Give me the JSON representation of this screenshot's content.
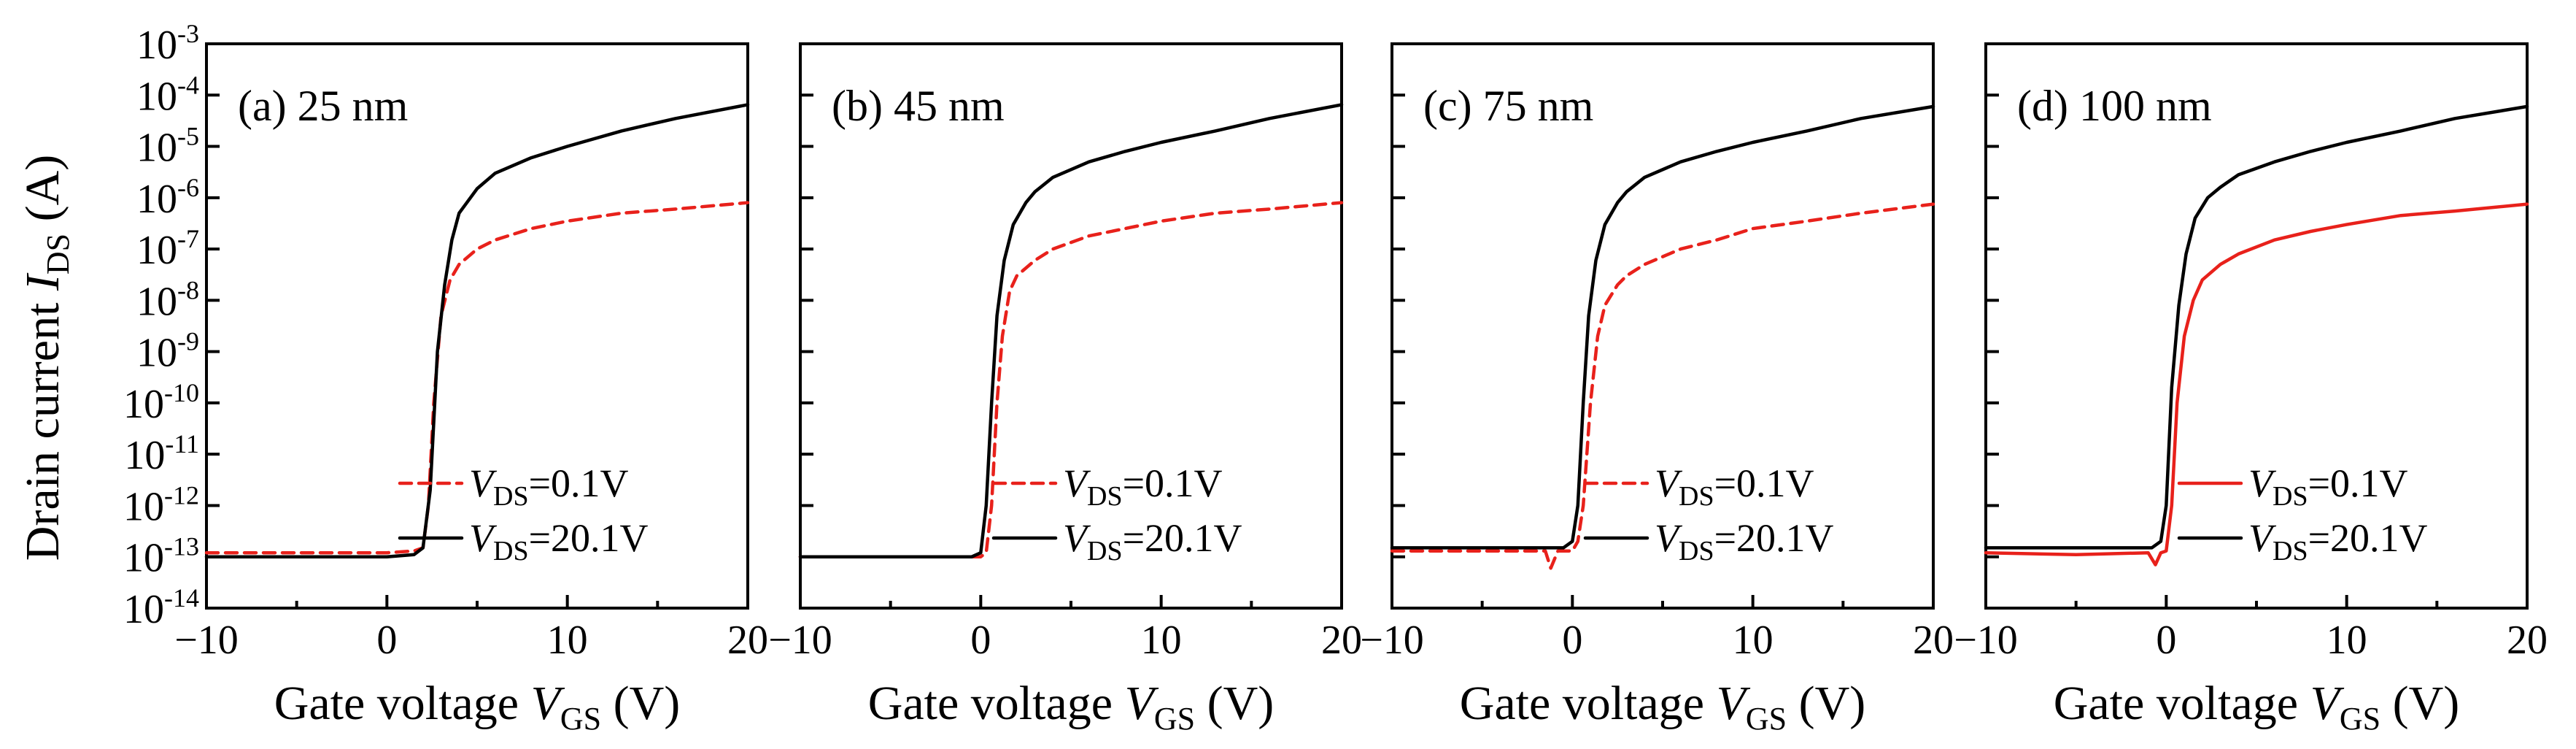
{
  "colors": {
    "vds_low": "#e8211b",
    "vds_high": "#000000"
  },
  "chart_data": [
    {
      "type": "line",
      "panel_label": "(a) 25 nm",
      "xlabel": "Gate voltage V_GS (V)",
      "ylabel": "Drain current I_DS (A)",
      "xlim": [
        -10,
        20
      ],
      "ylim": [
        1e-14,
        0.001
      ],
      "yscale": "log",
      "xticks": [
        "−10",
        "0",
        "10",
        "20"
      ],
      "yticks": [
        "10-3",
        "10-4",
        "10-5",
        "10-6",
        "10-7",
        "10-8",
        "10-9",
        "10-10",
        "10-11",
        "10-12",
        "10-13",
        "10-14"
      ],
      "grid": false,
      "legend_position": "lower-right",
      "series": [
        {
          "name": "V_DS=0.1V",
          "color": "#e8211b",
          "style": "dashed",
          "x": [
            -10,
            -5,
            0,
            1.5,
            2.0,
            2.3,
            2.6,
            3.0,
            3.5,
            4,
            5,
            6,
            8,
            10,
            13,
            16,
            20
          ],
          "y": [
            1.2e-13,
            1.2e-13,
            1.2e-13,
            1.3e-13,
            1.5e-13,
            1e-12,
            1e-10,
            5e-09,
            2.5e-08,
            5e-08,
            1e-07,
            1.5e-07,
            2.5e-07,
            3.5e-07,
            5e-07,
            6e-07,
            8e-07
          ]
        },
        {
          "name": "V_DS=20.1V",
          "color": "#000000",
          "style": "solid",
          "x": [
            -10,
            -5,
            0,
            1.5,
            2.0,
            2.4,
            2.8,
            3.2,
            3.6,
            4,
            5,
            6,
            8,
            10,
            13,
            16,
            20
          ],
          "y": [
            1e-13,
            1e-13,
            1e-13,
            1.1e-13,
            1.5e-13,
            2e-12,
            1e-09,
            2e-08,
            1.5e-07,
            5e-07,
            1.5e-06,
            3e-06,
            6e-06,
            1e-05,
            2e-05,
            3.5e-05,
            6.5e-05
          ]
        }
      ]
    },
    {
      "type": "line",
      "panel_label": "(b) 45 nm",
      "xlabel": "Gate voltage V_GS (V)",
      "xlim": [
        -10,
        20
      ],
      "ylim": [
        1e-14,
        0.001
      ],
      "yscale": "log",
      "xticks": [
        "−10",
        "0",
        "10",
        "20"
      ],
      "grid": false,
      "legend_position": "lower-right",
      "series": [
        {
          "name": "V_DS=0.1V",
          "color": "#e8211b",
          "style": "dashed",
          "x": [
            -10,
            -5,
            0,
            0.3,
            0.6,
            0.9,
            1.2,
            1.6,
            2,
            3,
            4,
            6,
            8,
            10,
            13,
            16,
            20
          ],
          "y": [
            1e-13,
            1e-13,
            1e-13,
            1.2e-13,
            1e-12,
            1e-10,
            2e-09,
            1.5e-08,
            3e-08,
            6e-08,
            1e-07,
            1.8e-07,
            2.5e-07,
            3.5e-07,
            5e-07,
            6e-07,
            8e-07
          ]
        },
        {
          "name": "V_DS=20.1V",
          "color": "#000000",
          "style": "solid",
          "x": [
            -10,
            -5,
            -0.5,
            0,
            0.3,
            0.6,
            0.9,
            1.3,
            1.8,
            2.5,
            3,
            4,
            6,
            8,
            10,
            13,
            16,
            20
          ],
          "y": [
            1e-13,
            1e-13,
            1e-13,
            1.2e-13,
            1e-12,
            1e-10,
            5e-09,
            6e-08,
            3e-07,
            8e-07,
            1.3e-06,
            2.5e-06,
            5e-06,
            8e-06,
            1.2e-05,
            2e-05,
            3.5e-05,
            6.5e-05
          ]
        }
      ]
    },
    {
      "type": "line",
      "panel_label": "(c) 75 nm",
      "xlabel": "Gate voltage V_GS (V)",
      "xlim": [
        -10,
        20
      ],
      "ylim": [
        1e-14,
        0.001
      ],
      "yscale": "log",
      "xticks": [
        "−10",
        "0",
        "10",
        "20"
      ],
      "grid": false,
      "legend_position": "lower-right",
      "series": [
        {
          "name": "V_DS=0.1V",
          "color": "#e8211b",
          "style": "dashed",
          "x": [
            -10,
            -5,
            -1.5,
            -1.2,
            -0.8,
            0,
            0.3,
            0.6,
            1.0,
            1.4,
            1.8,
            2.5,
            3,
            4,
            6,
            8,
            10,
            13,
            16,
            20
          ],
          "y": [
            1.3e-13,
            1.3e-13,
            1.3e-13,
            6e-14,
            1.3e-13,
            1.3e-13,
            2e-13,
            1e-12,
            1e-10,
            2e-09,
            8e-09,
            2e-08,
            3e-08,
            5e-08,
            1e-07,
            1.5e-07,
            2.5e-07,
            3.5e-07,
            5e-07,
            7.5e-07
          ]
        },
        {
          "name": "V_DS=20.1V",
          "color": "#000000",
          "style": "solid",
          "x": [
            -10,
            -5,
            -0.5,
            0,
            0.3,
            0.6,
            0.9,
            1.3,
            1.8,
            2.5,
            3,
            4,
            6,
            8,
            10,
            13,
            16,
            20
          ],
          "y": [
            1.5e-13,
            1.5e-13,
            1.5e-13,
            2e-13,
            1e-12,
            1e-10,
            5e-09,
            6e-08,
            3e-07,
            8e-07,
            1.3e-06,
            2.5e-06,
            5e-06,
            8e-06,
            1.2e-05,
            2e-05,
            3.5e-05,
            6e-05
          ]
        }
      ]
    },
    {
      "type": "line",
      "panel_label": "(d) 100 nm",
      "xlabel": "Gate voltage V_GS (V)",
      "xlim": [
        -10,
        20
      ],
      "ylim": [
        1e-14,
        0.001
      ],
      "yscale": "log",
      "xticks": [
        "−10",
        "0",
        "10",
        "20"
      ],
      "grid": false,
      "legend_position": "lower-right",
      "series": [
        {
          "name": "V_DS=0.1V",
          "color": "#e8211b",
          "style": "solid",
          "x": [
            -10,
            -5,
            -1,
            -0.6,
            -0.3,
            0,
            0.3,
            0.6,
            1.0,
            1.5,
            2,
            3,
            4,
            6,
            8,
            10,
            13,
            16,
            20
          ],
          "y": [
            1.2e-13,
            1.1e-13,
            1.2e-13,
            7e-14,
            1.2e-13,
            1.3e-13,
            1e-12,
            1e-10,
            2e-09,
            1e-08,
            2.5e-08,
            5e-08,
            8e-08,
            1.5e-07,
            2.2e-07,
            3e-07,
            4.5e-07,
            5.5e-07,
            7.5e-07
          ]
        },
        {
          "name": "V_DS=20.1V",
          "color": "#000000",
          "style": "solid",
          "x": [
            -10,
            -5,
            -0.8,
            -0.3,
            0,
            0.3,
            0.7,
            1.1,
            1.6,
            2.3,
            3,
            4,
            6,
            8,
            10,
            13,
            16,
            20
          ],
          "y": [
            1.5e-13,
            1.5e-13,
            1.5e-13,
            2e-13,
            1e-12,
            2e-10,
            8e-09,
            8e-08,
            4e-07,
            1e-06,
            1.6e-06,
            2.8e-06,
            5e-06,
            8e-06,
            1.2e-05,
            2e-05,
            3.5e-05,
            6e-05
          ]
        }
      ]
    }
  ],
  "labels": {
    "ylabel_main": "Drain current ",
    "ylabel_var": "I",
    "ylabel_sub": "DS",
    "ylabel_unit": " (A)",
    "xlabel_main": "Gate voltage ",
    "xlabel_var": "V",
    "xlabel_sub": "GS",
    "xlabel_unit": " (V)",
    "legend_var": "V",
    "legend_sub": "DS",
    "legend_low_value": "=0.1V",
    "legend_high_value": "=20.1V",
    "ytick_base": "10",
    "ytick_exps": [
      "-3",
      "-4",
      "-5",
      "-6",
      "-7",
      "-8",
      "-9",
      "-10",
      "-11",
      "-12",
      "-13",
      "-14"
    ]
  }
}
